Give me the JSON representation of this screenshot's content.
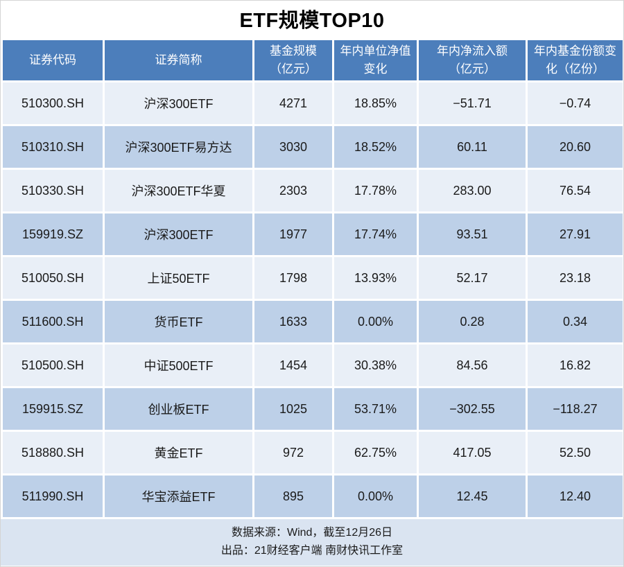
{
  "page": {
    "title": "ETF规模TOP10"
  },
  "colors": {
    "header_bg": "#4C7EBB",
    "row_light": "#E9EFF7",
    "row_dark": "#BDD0E8",
    "footer_bg": "#DAE4F1",
    "header_text": "#FFFFFF",
    "cell_text": "#1A1A1A"
  },
  "chart_data": {
    "type": "table",
    "title": "ETF规模TOP10",
    "columns": [
      "证券代码",
      "证券简称",
      "基金规模（亿元）",
      "年内单位净值变化",
      "年内净流入额（亿元）",
      "年内基金份额变化（亿份）"
    ],
    "columns_display": [
      "证券代码",
      "证券简称",
      "基金规模\n（亿元）",
      "年内单位净值\n变化",
      "年内净流入额\n（亿元）",
      "年内基金份额变\n化（亿份）"
    ],
    "rows": [
      [
        "510300.SH",
        "沪深300ETF",
        "4271",
        "18.85%",
        "−51.71",
        "−0.74"
      ],
      [
        "510310.SH",
        "沪深300ETF易方达",
        "3030",
        "18.52%",
        "60.11",
        "20.60"
      ],
      [
        "510330.SH",
        "沪深300ETF华夏",
        "2303",
        "17.78%",
        "283.00",
        "76.54"
      ],
      [
        "159919.SZ",
        "沪深300ETF",
        "1977",
        "17.74%",
        "93.51",
        "27.91"
      ],
      [
        "510050.SH",
        "上证50ETF",
        "1798",
        "13.93%",
        "52.17",
        "23.18"
      ],
      [
        "511600.SH",
        "货币ETF",
        "1633",
        "0.00%",
        "0.28",
        "0.34"
      ],
      [
        "510500.SH",
        "中证500ETF",
        "1454",
        "30.38%",
        "84.56",
        "16.82"
      ],
      [
        "159915.SZ",
        "创业板ETF",
        "1025",
        "53.71%",
        "−302.55",
        "−118.27"
      ],
      [
        "518880.SH",
        "黄金ETF",
        "972",
        "62.75%",
        "417.05",
        "52.50"
      ],
      [
        "511990.SH",
        "华宝添益ETF",
        "895",
        "0.00%",
        "12.45",
        "12.40"
      ]
    ]
  },
  "footer": {
    "source": "数据来源：Wind，截至12月26日",
    "producer": "出品：21财经客户端 南财快讯工作室"
  }
}
